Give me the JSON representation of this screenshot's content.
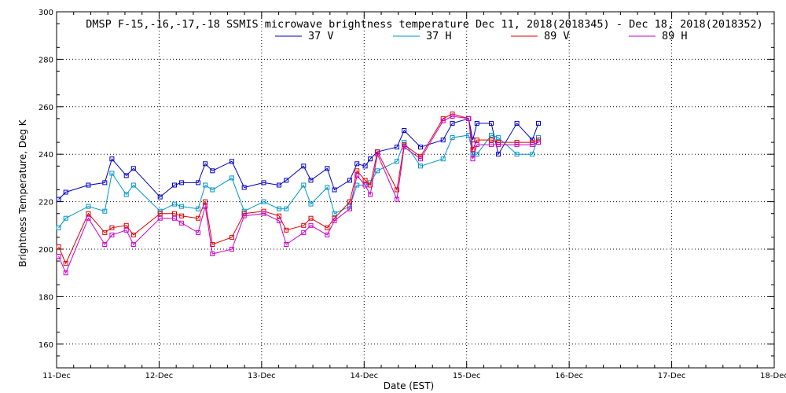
{
  "chart_data": {
    "type": "line",
    "title": "DMSP F-15,-16,-17,-18 SSMIS microwave brightness temperature Dec 11, 2018(2018345) - Dec 18, 2018(2018352)",
    "xlabel": "Date (EST)",
    "ylabel": "Brightness Temperature, Deg K",
    "xlim": [
      0,
      7
    ],
    "ylim": [
      150,
      300
    ],
    "grid": true,
    "legend_position": "top-center",
    "x_ticks": [
      {
        "value": 0,
        "label": "11-Dec"
      },
      {
        "value": 1,
        "label": "12-Dec"
      },
      {
        "value": 2,
        "label": "13-Dec"
      },
      {
        "value": 3,
        "label": "14-Dec"
      },
      {
        "value": 4,
        "label": "15-Dec"
      },
      {
        "value": 5,
        "label": "16-Dec"
      },
      {
        "value": 6,
        "label": "17-Dec"
      },
      {
        "value": 7,
        "label": "18-Dec"
      }
    ],
    "y_ticks": [
      {
        "value": 160,
        "label": "160"
      },
      {
        "value": 180,
        "label": "180"
      },
      {
        "value": 200,
        "label": "200"
      },
      {
        "value": 220,
        "label": "220"
      },
      {
        "value": 240,
        "label": "240"
      },
      {
        "value": 260,
        "label": "260"
      },
      {
        "value": 280,
        "label": "280"
      },
      {
        "value": 300,
        "label": "300"
      }
    ],
    "series": [
      {
        "name": "37 V",
        "color": "#0000c8",
        "x": [
          0.02,
          0.09,
          0.31,
          0.47,
          0.54,
          0.68,
          0.75,
          1.01,
          1.15,
          1.22,
          1.38,
          1.45,
          1.52,
          1.71,
          1.83,
          2.02,
          2.17,
          2.24,
          2.41,
          2.48,
          2.64,
          2.71,
          2.86,
          2.93,
          3.01,
          3.06,
          3.13,
          3.32,
          3.39,
          3.55,
          3.77,
          3.86,
          4.02,
          4.06,
          4.1,
          4.24,
          4.31,
          4.49,
          4.64,
          4.7
        ],
        "values": [
          221,
          224,
          227,
          228,
          238,
          231,
          234,
          222,
          227,
          228,
          228,
          236,
          233,
          237,
          226,
          228,
          227,
          229,
          235,
          229,
          234,
          225,
          229,
          236,
          235,
          238,
          241,
          243,
          250,
          243,
          246,
          253,
          255,
          246,
          253,
          253,
          240,
          253,
          246,
          253
        ]
      },
      {
        "name": "37 H",
        "color": "#0096c8",
        "x": [
          0.02,
          0.09,
          0.31,
          0.47,
          0.54,
          0.68,
          0.75,
          1.01,
          1.15,
          1.22,
          1.38,
          1.45,
          1.52,
          1.71,
          1.83,
          2.02,
          2.17,
          2.24,
          2.41,
          2.48,
          2.64,
          2.71,
          2.86,
          2.93,
          3.01,
          3.06,
          3.13,
          3.32,
          3.39,
          3.55,
          3.77,
          3.86,
          4.02,
          4.06,
          4.1,
          4.24,
          4.31,
          4.49,
          4.64,
          4.7
        ],
        "values": [
          209,
          213,
          218,
          216,
          232,
          223,
          227,
          216,
          219,
          218,
          217,
          227,
          225,
          230,
          216,
          220,
          217,
          217,
          227,
          219,
          226,
          215,
          218,
          227,
          227,
          228,
          233,
          237,
          245,
          235,
          238,
          247,
          248,
          240,
          240,
          248,
          247,
          240,
          240,
          247
        ]
      },
      {
        "name": "89 V",
        "color": "#dc0000",
        "x": [
          0.02,
          0.09,
          0.31,
          0.47,
          0.54,
          0.68,
          0.75,
          1.01,
          1.15,
          1.22,
          1.38,
          1.45,
          1.52,
          1.71,
          1.83,
          2.02,
          2.17,
          2.24,
          2.41,
          2.48,
          2.64,
          2.71,
          2.86,
          2.93,
          3.01,
          3.06,
          3.13,
          3.32,
          3.39,
          3.55,
          3.77,
          3.86,
          4.02,
          4.06,
          4.1,
          4.24,
          4.31,
          4.49,
          4.64,
          4.7
        ],
        "values": [
          201,
          194,
          215,
          207,
          209,
          210,
          206,
          215,
          215,
          214,
          213,
          220,
          202,
          205,
          215,
          216,
          214,
          208,
          210,
          213,
          209,
          213,
          220,
          233,
          229,
          227,
          241,
          225,
          244,
          239,
          255,
          257,
          255,
          242,
          246,
          246,
          245,
          245,
          245,
          246
        ]
      },
      {
        "name": "89 H",
        "color": "#c800c8",
        "x": [
          0.02,
          0.09,
          0.31,
          0.47,
          0.54,
          0.68,
          0.75,
          1.01,
          1.15,
          1.22,
          1.38,
          1.45,
          1.52,
          1.71,
          1.83,
          2.02,
          2.17,
          2.24,
          2.41,
          2.48,
          2.64,
          2.71,
          2.86,
          2.93,
          3.01,
          3.06,
          3.13,
          3.32,
          3.39,
          3.55,
          3.77,
          3.86,
          4.02,
          4.06,
          4.1,
          4.24,
          4.31,
          4.49,
          4.64,
          4.7
        ],
        "values": [
          197,
          190,
          213,
          202,
          206,
          208,
          202,
          213,
          213,
          211,
          207,
          218,
          198,
          200,
          214,
          215,
          212,
          202,
          207,
          210,
          206,
          212,
          217,
          231,
          227,
          223,
          240,
          221,
          243,
          238,
          254,
          256,
          255,
          238,
          244,
          244,
          244,
          244,
          244,
          245
        ]
      }
    ]
  }
}
